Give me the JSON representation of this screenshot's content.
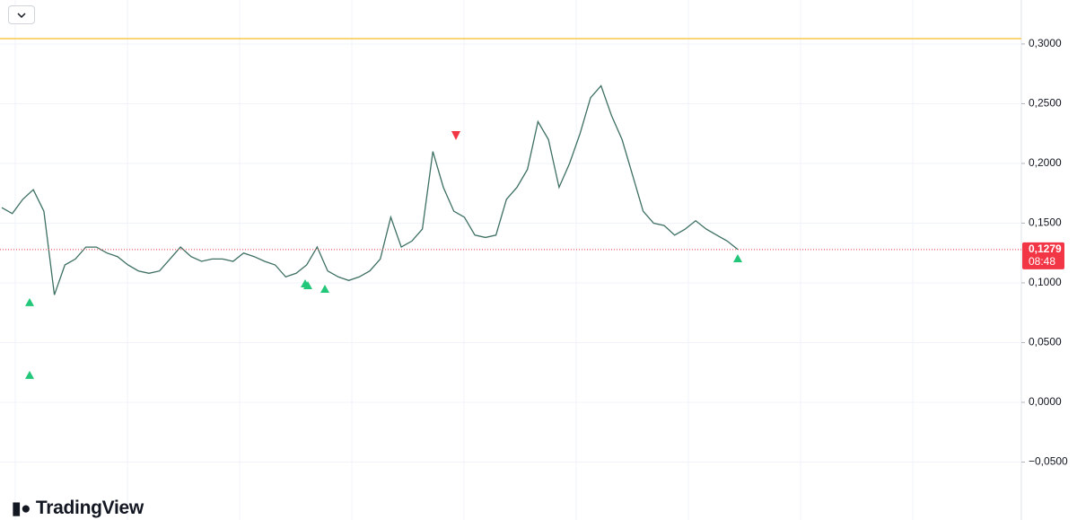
{
  "chart_data": {
    "type": "line",
    "brand": "TradingView",
    "values": [
      0.163,
      0.158,
      0.17,
      0.178,
      0.16,
      0.09,
      0.115,
      0.12,
      0.13,
      0.13,
      0.125,
      0.122,
      0.115,
      0.11,
      0.108,
      0.11,
      0.12,
      0.13,
      0.122,
      0.118,
      0.12,
      0.12,
      0.118,
      0.125,
      0.122,
      0.118,
      0.115,
      0.105,
      0.108,
      0.115,
      0.13,
      0.11,
      0.105,
      0.102,
      0.105,
      0.11,
      0.12,
      0.155,
      0.13,
      0.135,
      0.145,
      0.21,
      0.18,
      0.16,
      0.155,
      0.14,
      0.138,
      0.14,
      0.17,
      0.18,
      0.195,
      0.235,
      0.22,
      0.18,
      0.2,
      0.225,
      0.255,
      0.265,
      0.24,
      0.22,
      0.19,
      0.16,
      0.15,
      0.148,
      0.14,
      0.145,
      0.152,
      0.145,
      0.14,
      0.135,
      0.128
    ],
    "color": "#3d6f62",
    "ylim": [
      -0.0985,
      0.3368
    ],
    "yticks": [
      {
        "value": 0.3,
        "label": "0,3000"
      },
      {
        "value": 0.25,
        "label": "0,2500"
      },
      {
        "value": 0.2,
        "label": "0,2000"
      },
      {
        "value": 0.15,
        "label": "0,1500"
      },
      {
        "value": 0.1,
        "label": "0,1000"
      },
      {
        "value": 0.05,
        "label": "0,0500"
      },
      {
        "value": 0,
        "label": "0,0000"
      },
      {
        "value": -0.05,
        "label": "−0,0500"
      }
    ],
    "grid": true,
    "level_line": {
      "value": 0.3045,
      "color": "#f7c948"
    },
    "last_price": {
      "value": 0.1279,
      "label": "0,1279",
      "countdown": "08:48",
      "color": "#f23645"
    },
    "buy_signals": {
      "color": "#22c77a",
      "values": [
        0.0835,
        0.0226,
        0.0992,
        0.0977,
        0.0947,
        0.1203
      ]
    },
    "sell_signals": {
      "color": "#f23645",
      "values": [
        0.2233
      ]
    }
  }
}
